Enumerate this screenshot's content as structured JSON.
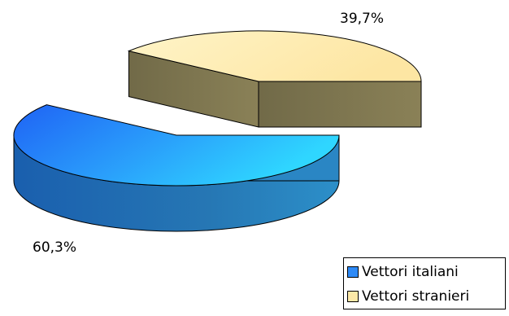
{
  "chart_data": {
    "type": "pie",
    "style": "3d-exploded",
    "title": "",
    "slices": [
      {
        "name": "Vettori italiani",
        "value": 60.3,
        "label": "60,3%",
        "color": "#2e8af6"
      },
      {
        "name": "Vettori stranieri",
        "value": 39.7,
        "label": "39,7%",
        "color": "#fde9a8"
      }
    ],
    "legend": {
      "position": "bottom-right",
      "items": [
        "Vettori italiani",
        "Vettori stranieri"
      ]
    }
  }
}
